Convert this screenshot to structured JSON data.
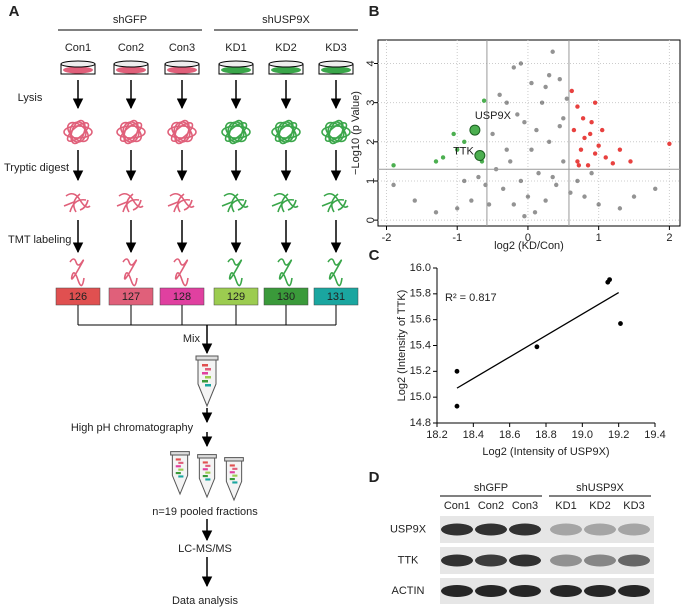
{
  "panel_a": {
    "label": "A",
    "groups": [
      "shGFP",
      "shUSP9X"
    ],
    "samples": [
      "Con1",
      "Con2",
      "Con3",
      "KD1",
      "KD2",
      "KD3"
    ],
    "steps": [
      "Lysis",
      "Tryptic digest",
      "TMT labeling"
    ],
    "tags": [
      "126",
      "127",
      "128",
      "129",
      "130",
      "131"
    ],
    "mix": "Mix",
    "chromatography": "High pH chromatography",
    "fractions": "n=19 pooled fractions",
    "ms": "LC-MS/MS",
    "analysis": "Data analysis"
  },
  "chart_data": [
    {
      "type": "scatter",
      "label": "B",
      "xlabel": "log2 (KD/Con)",
      "ylabel": "−Log10 (p Value)",
      "xlim": [
        -2.12,
        2.15
      ],
      "xticks": [
        -2,
        -1,
        0,
        1,
        2
      ],
      "ylim": [
        -0.15,
        4.6
      ],
      "yticks": [
        0,
        1,
        2,
        3,
        4
      ],
      "grid": true,
      "thresholds_x": [
        -0.58,
        0.58
      ],
      "threshold_y": 1.3,
      "series": [
        {
          "color": "#3a3a3a",
          "x": [
            -0.05,
            0.1,
            -0.2,
            0.25,
            -0.35,
            0.4,
            -0.1,
            0.15,
            -0.45,
            0.5,
            -0.3,
            0.3,
            -0.5,
            0.45,
            -0.15,
            0.2,
            -0.4,
            0.05,
            -0.2,
            0.35,
            0.0,
            -0.6,
            0.6,
            -0.8,
            0.8,
            -1.0,
            1.0,
            -1.3,
            1.3,
            -1.6,
            1.5,
            0.7,
            -0.7,
            0.9,
            -0.9,
            0.55,
            0.3,
            -0.1,
            0.12,
            -0.25,
            0.35,
            -0.55,
            0.05,
            -0.05,
            1.8,
            -1.9,
            0.5,
            0.45,
            -0.3,
            0.25
          ],
          "y": [
            0.1,
            0.2,
            0.4,
            0.5,
            0.8,
            0.9,
            1.0,
            1.2,
            1.3,
            1.5,
            1.8,
            2.0,
            2.2,
            2.4,
            2.7,
            3.0,
            3.2,
            3.5,
            3.9,
            4.3,
            0.6,
            0.9,
            0.7,
            0.5,
            0.6,
            0.3,
            0.4,
            0.2,
            0.3,
            0.5,
            0.6,
            1.0,
            1.1,
            1.2,
            1.0,
            3.1,
            3.7,
            4.0,
            2.3,
            1.5,
            1.1,
            0.4,
            1.8,
            2.5,
            0.8,
            0.9,
            2.6,
            3.6,
            3.0,
            3.4
          ]
        },
        {
          "color": "#e8413f",
          "x": [
            0.7,
            0.75,
            0.8,
            0.85,
            0.9,
            0.95,
            1.0,
            0.65,
            0.7,
            0.78,
            1.1,
            1.2,
            1.3,
            0.95,
            0.88,
            0.72,
            1.05,
            1.45,
            2.0,
            0.62
          ],
          "y": [
            1.5,
            1.8,
            2.1,
            1.4,
            2.5,
            1.7,
            1.9,
            2.3,
            2.9,
            2.6,
            1.6,
            1.45,
            1.8,
            3.0,
            2.2,
            1.4,
            2.3,
            1.5,
            1.95,
            3.3
          ]
        },
        {
          "color": "#4caf50",
          "x": [
            -1.0,
            -1.2,
            -0.9,
            -1.3,
            -0.62,
            -0.65,
            -1.05,
            -1.9
          ],
          "y": [
            1.8,
            1.6,
            2.0,
            1.5,
            3.05,
            1.5,
            2.2,
            1.4
          ]
        }
      ],
      "annotations": [
        {
          "text": "USP9X",
          "x": -0.75,
          "y": 2.3
        },
        {
          "text": "TTK",
          "x": -0.68,
          "y": 1.65
        }
      ]
    },
    {
      "type": "scatter",
      "label": "C",
      "xlabel": "Log2 (Intensity of USP9X)",
      "ylabel": "Log2 (Intensity of TTK)",
      "annotation": "R² = 0.817",
      "xlim": [
        18.2,
        19.4
      ],
      "xticks": [
        18.2,
        18.4,
        18.6,
        18.8,
        {
          "value": 19,
          "label": "19.0"
        },
        19.2,
        19.4
      ],
      "ylim": [
        14.8,
        16.0
      ],
      "yticks": [
        14.8,
        {
          "value": 15,
          "label": "15.0"
        },
        15.2,
        15.4,
        15.6,
        15.8,
        {
          "value": 16,
          "label": "16.0"
        }
      ],
      "grid": false,
      "series": [
        {
          "color": "#000000",
          "x": [
            18.31,
            18.31,
            18.75,
            19.14,
            19.15,
            19.21
          ],
          "y": [
            15.2,
            14.93,
            15.39,
            15.89,
            15.91,
            15.57
          ]
        }
      ],
      "fit": {
        "x": [
          18.31,
          19.2
        ],
        "y": [
          15.07,
          15.81
        ]
      }
    }
  ],
  "panel_d": {
    "label": "D",
    "groups": [
      "shGFP",
      "shUSP9X"
    ],
    "lanes": [
      "Con1",
      "Con2",
      "Con3",
      "KD1",
      "KD2",
      "KD3"
    ],
    "rows": [
      "USP9X",
      "TTK",
      "ACTIN"
    ]
  }
}
